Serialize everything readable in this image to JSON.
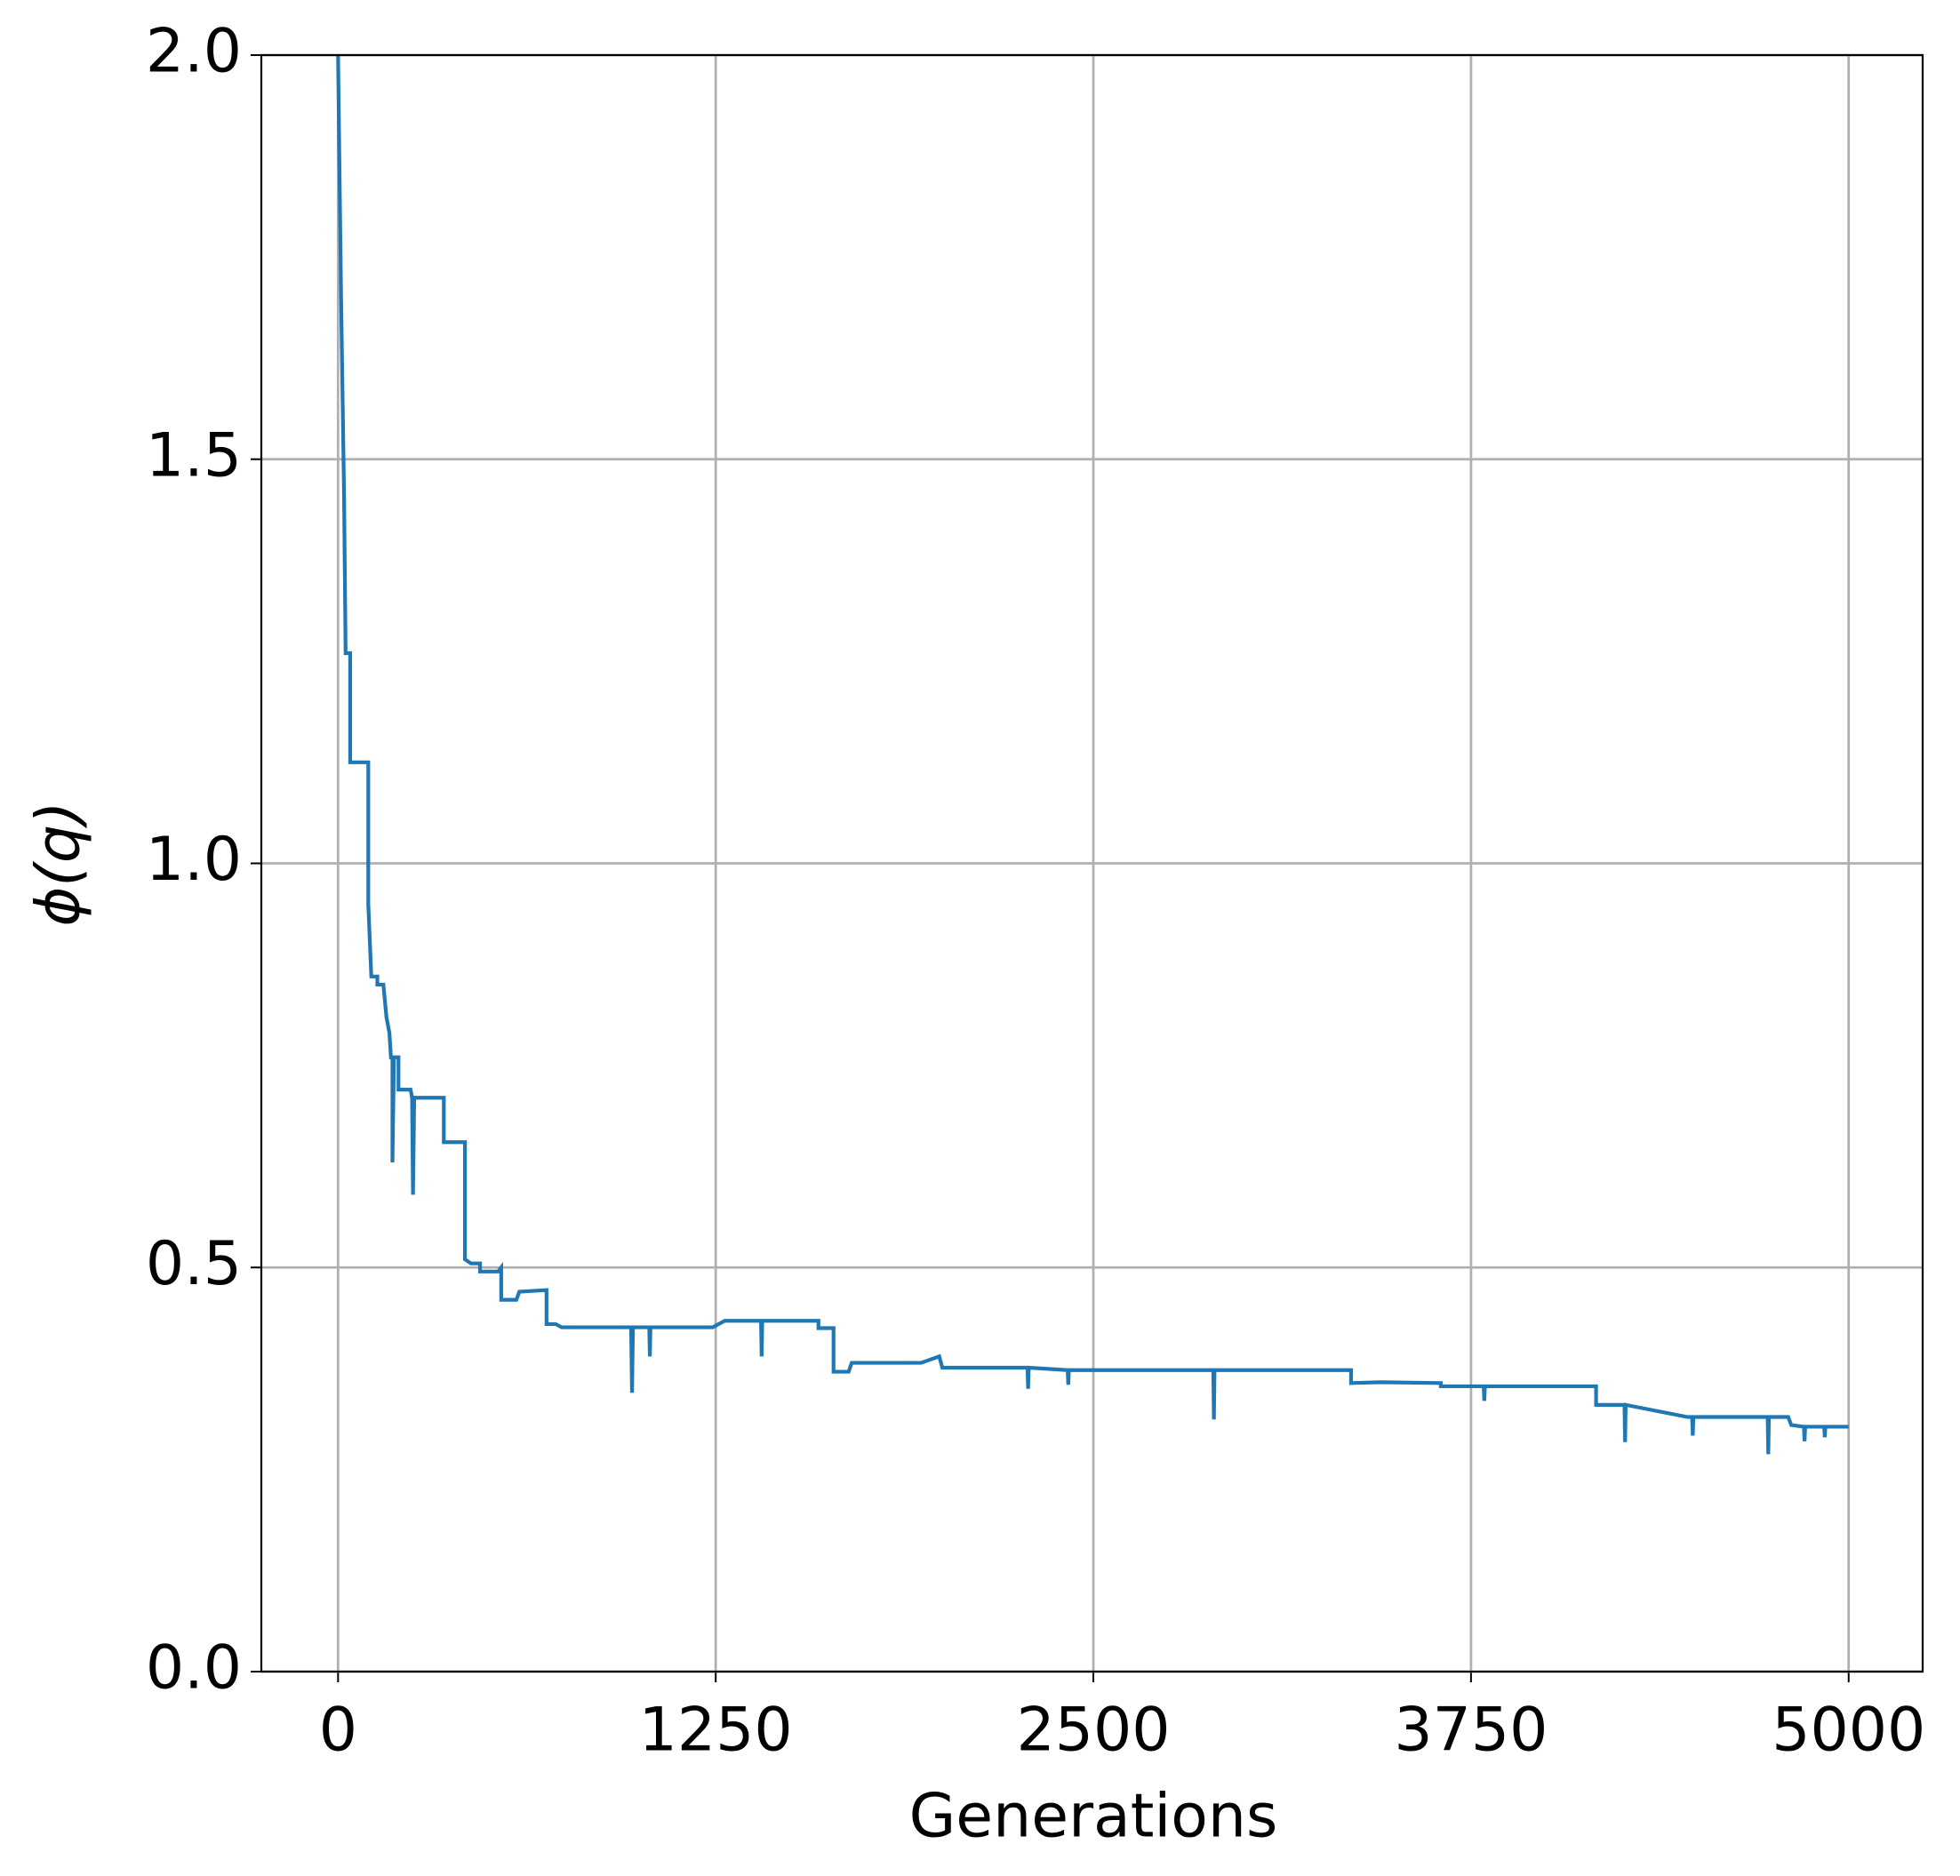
{
  "chart_data": {
    "type": "line",
    "xlabel": "Generations",
    "ylabel": "ϕ(q)",
    "xlim": [
      -254,
      5245
    ],
    "ylim": [
      0,
      2
    ],
    "xticks": [
      0,
      1250,
      2500,
      3750,
      5000
    ],
    "yticks": [
      {
        "value": 0,
        "label": "0.0"
      },
      0.5,
      {
        "value": 1,
        "label": "1.0"
      },
      1.5,
      {
        "value": 2,
        "label": "2.0"
      }
    ],
    "grid": true,
    "series": [
      {
        "color": "#1f77b4",
        "x": [
          0,
          10,
          20,
          25,
          40,
          40,
          100,
          100,
          110,
          130,
          130,
          150,
          160,
          170,
          175,
          180,
          180,
          185,
          200,
          200,
          240,
          245,
          248,
          252,
          350,
          350,
          420,
          420,
          440,
          470,
          470,
          530,
          540,
          540,
          590,
          600,
          690,
          690,
          720,
          740,
          970,
          973,
          976,
          1030,
          1032,
          1034,
          1240,
          1280,
          1400,
          1402,
          1404,
          1590,
          1590,
          1640,
          1640,
          1690,
          1700,
          1930,
          1990,
          2000,
          2282,
          2284,
          2286,
          2415,
          2417,
          2419,
          2897,
          2899,
          2901,
          3353,
          3353,
          3450,
          3650,
          3650,
          3792,
          3794,
          3796,
          4164,
          4164,
          4258,
          4260,
          4262,
          4467,
          4482,
          4484,
          4486,
          4732,
          4734,
          4736,
          4800,
          4810,
          4852,
          4854,
          4856,
          4919,
          4921,
          4923,
          5000
        ],
        "values": [
          2.0,
          1.7,
          1.45,
          1.26,
          1.26,
          1.125,
          1.125,
          0.95,
          0.86,
          0.86,
          0.85,
          0.85,
          0.81,
          0.79,
          0.76,
          0.76,
          0.63,
          0.76,
          0.76,
          0.72,
          0.72,
          0.71,
          0.59,
          0.71,
          0.71,
          0.655,
          0.655,
          0.51,
          0.505,
          0.505,
          0.495,
          0.495,
          0.5,
          0.46,
          0.46,
          0.47,
          0.472,
          0.43,
          0.43,
          0.426,
          0.426,
          0.345,
          0.426,
          0.426,
          0.39,
          0.426,
          0.426,
          0.434,
          0.434,
          0.39,
          0.434,
          0.434,
          0.425,
          0.425,
          0.371,
          0.371,
          0.382,
          0.382,
          0.39,
          0.376,
          0.376,
          0.35,
          0.376,
          0.373,
          0.355,
          0.373,
          0.373,
          0.312,
          0.373,
          0.373,
          0.357,
          0.358,
          0.357,
          0.353,
          0.353,
          0.335,
          0.353,
          0.353,
          0.33,
          0.33,
          0.284,
          0.33,
          0.315,
          0.315,
          0.292,
          0.315,
          0.315,
          0.269,
          0.315,
          0.315,
          0.305,
          0.303,
          0.285,
          0.303,
          0.303,
          0.29,
          0.303,
          0.303
        ]
      }
    ]
  }
}
